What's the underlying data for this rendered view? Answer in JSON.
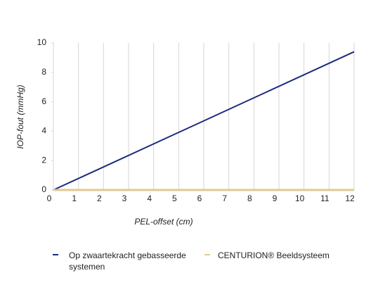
{
  "chart_data": {
    "type": "line",
    "x_label": "PEL-offset (cm)",
    "y_label": "IOP-fout (mmHg)",
    "x": [
      0,
      12
    ],
    "series": [
      {
        "name": "Op zwaartekracht gebasseerde systemen",
        "color": "#1b2a80",
        "values": [
          0,
          9.4
        ]
      },
      {
        "name": "CENTURION® Beeldsysteem",
        "color": "#e2c893",
        "values": [
          0,
          0
        ]
      }
    ],
    "xlim": [
      0,
      12
    ],
    "xticks": [
      0,
      1,
      2,
      3,
      4,
      5,
      6,
      7,
      8,
      9,
      10,
      11,
      12
    ],
    "ylim": [
      0,
      10
    ],
    "yticks": [
      0,
      2,
      4,
      6,
      8,
      10
    ],
    "grid": "x"
  }
}
